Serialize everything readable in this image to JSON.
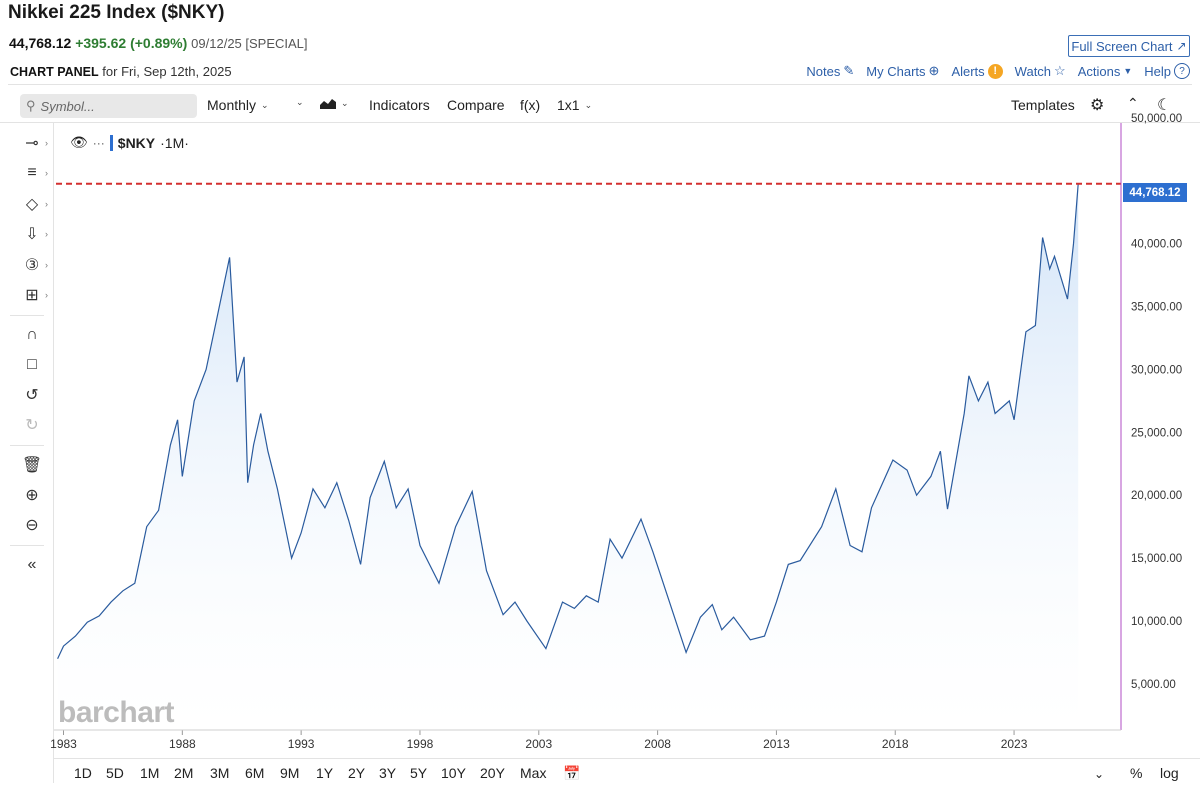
{
  "header": {
    "title": "Nikkei 225 Index ($NKY)",
    "last": "44,768.12",
    "change": "+395.62 (+0.89%)",
    "date": "09/12/25 [SPECIAL]",
    "full_screen": "Full Screen Chart",
    "panel_label": "CHART PANEL",
    "panel_date": "for Fri, Sep 12th, 2025"
  },
  "top_links": [
    "Notes",
    "My Charts",
    "Alerts",
    "Watch",
    "Actions",
    "Help"
  ],
  "toolbar": {
    "search_placeholder": "Symbol...",
    "interval": "Monthly",
    "indicators": "Indicators",
    "compare": "Compare",
    "fx": "f(x)",
    "layout": "1x1",
    "templates": "Templates"
  },
  "legend": {
    "symbol": "$NKY",
    "period": "·1M·"
  },
  "sidebar_icons": [
    "crosshair-icon",
    "lines-icon",
    "shapes-icon",
    "arrow-down-icon",
    "number-icon",
    "measure-icon",
    "magnet-icon",
    "unlock-icon",
    "undo-icon",
    "redo-icon",
    "trash-icon",
    "zoom-in-icon",
    "zoom-out-icon",
    "collapse-icon"
  ],
  "range_buttons": [
    "1D",
    "5D",
    "1M",
    "2M",
    "3M",
    "6M",
    "9M",
    "1Y",
    "2Y",
    "3Y",
    "5Y",
    "10Y",
    "20Y",
    "Max"
  ],
  "bottom_right": {
    "percent": "%",
    "log": "log"
  },
  "watermark": "barchart",
  "colors": {
    "line": "#2a5b9e",
    "fill_top": "#cfe2f7",
    "last_price_line": "#d32f2f",
    "price_box": "#2d6fd0",
    "right_axis": "#b04ec5"
  },
  "chart_data": {
    "type": "area",
    "title": "Nikkei 225 Index ($NKY)",
    "x_tick_labels": [
      "1983",
      "1988",
      "1993",
      "1998",
      "2003",
      "2008",
      "2013",
      "2018",
      "2023"
    ],
    "y_tick_labels": [
      "5,000.00",
      "10,000.00",
      "15,000.00",
      "20,000.00",
      "25,000.00",
      "30,000.00",
      "35,000.00",
      "40,000.00",
      "50,000.00"
    ],
    "y_tick_values": [
      5000,
      10000,
      15000,
      20000,
      25000,
      30000,
      35000,
      40000,
      50000
    ],
    "x_range": [
      1982.6,
      2027.5
    ],
    "y_range": [
      3000,
      50000
    ],
    "last_price_label": "44,768.12",
    "last_price": 44768.12,
    "series": [
      {
        "values": [
          [
            1982.75,
            7000
          ],
          [
            1983.0,
            8000
          ],
          [
            1983.5,
            8800
          ],
          [
            1984.0,
            9900
          ],
          [
            1984.5,
            10400
          ],
          [
            1985.0,
            11500
          ],
          [
            1985.5,
            12400
          ],
          [
            1986.0,
            13000
          ],
          [
            1986.5,
            17500
          ],
          [
            1987.0,
            18800
          ],
          [
            1987.5,
            24000
          ],
          [
            1987.8,
            26000
          ],
          [
            1988.0,
            21500
          ],
          [
            1988.5,
            27500
          ],
          [
            1989.0,
            30000
          ],
          [
            1989.5,
            34500
          ],
          [
            1989.99,
            38915
          ],
          [
            1990.3,
            29000
          ],
          [
            1990.6,
            31000
          ],
          [
            1990.75,
            21000
          ],
          [
            1991.0,
            24000
          ],
          [
            1991.3,
            26500
          ],
          [
            1991.6,
            23500
          ],
          [
            1992.0,
            20500
          ],
          [
            1992.6,
            15000
          ],
          [
            1993.0,
            17000
          ],
          [
            1993.5,
            20500
          ],
          [
            1994.0,
            19000
          ],
          [
            1994.5,
            21000
          ],
          [
            1995.0,
            18000
          ],
          [
            1995.5,
            14500
          ],
          [
            1995.9,
            19800
          ],
          [
            1996.5,
            22700
          ],
          [
            1997.0,
            19000
          ],
          [
            1997.5,
            20500
          ],
          [
            1998.0,
            16000
          ],
          [
            1998.8,
            13000
          ],
          [
            1999.5,
            17500
          ],
          [
            2000.2,
            20300
          ],
          [
            2000.8,
            14000
          ],
          [
            2001.5,
            10500
          ],
          [
            2002.0,
            11500
          ],
          [
            2002.5,
            10000
          ],
          [
            2003.3,
            7800
          ],
          [
            2004.0,
            11500
          ],
          [
            2004.5,
            11000
          ],
          [
            2005.0,
            12000
          ],
          [
            2005.5,
            11500
          ],
          [
            2006.0,
            16500
          ],
          [
            2006.5,
            15000
          ],
          [
            2007.3,
            18100
          ],
          [
            2007.8,
            15500
          ],
          [
            2008.5,
            11500
          ],
          [
            2009.2,
            7500
          ],
          [
            2009.8,
            10300
          ],
          [
            2010.3,
            11300
          ],
          [
            2010.7,
            9300
          ],
          [
            2011.2,
            10300
          ],
          [
            2011.9,
            8500
          ],
          [
            2012.5,
            8800
          ],
          [
            2013.0,
            11500
          ],
          [
            2013.5,
            14500
          ],
          [
            2014.0,
            14800
          ],
          [
            2014.9,
            17500
          ],
          [
            2015.5,
            20500
          ],
          [
            2016.1,
            16000
          ],
          [
            2016.6,
            15500
          ],
          [
            2017.0,
            19000
          ],
          [
            2017.9,
            22800
          ],
          [
            2018.5,
            22000
          ],
          [
            2018.9,
            20000
          ],
          [
            2019.5,
            21500
          ],
          [
            2019.9,
            23500
          ],
          [
            2020.2,
            18900
          ],
          [
            2020.9,
            26500
          ],
          [
            2021.1,
            29500
          ],
          [
            2021.5,
            27500
          ],
          [
            2021.9,
            29000
          ],
          [
            2022.2,
            26500
          ],
          [
            2022.8,
            27500
          ],
          [
            2023.0,
            26000
          ],
          [
            2023.5,
            33000
          ],
          [
            2023.9,
            33500
          ],
          [
            2024.2,
            40500
          ],
          [
            2024.5,
            38000
          ],
          [
            2024.7,
            39000
          ],
          [
            2025.25,
            35600
          ],
          [
            2025.5,
            40000
          ],
          [
            2025.7,
            44768
          ]
        ]
      }
    ]
  }
}
